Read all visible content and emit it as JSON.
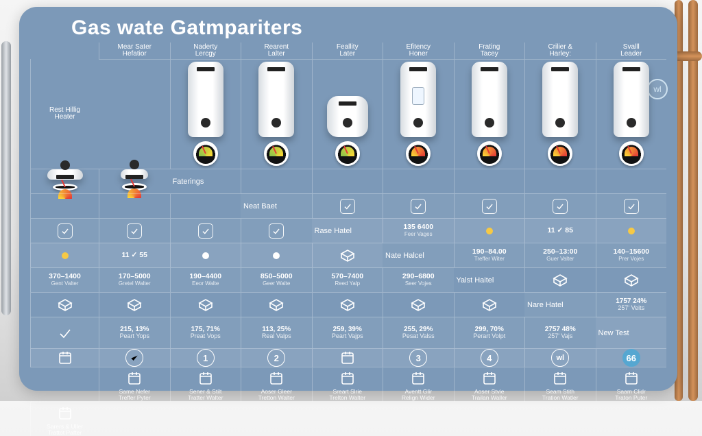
{
  "colors": {
    "card_bg": "#7c99b8",
    "grid_line": "rgba(255,255,255,.28)",
    "row_alt": "rgba(255,255,255,.05)",
    "row_high": "rgba(255,255,255,.10)",
    "accent_circle": "#56a7d1",
    "dot_yellow": "#f6c945",
    "gauge_colors": [
      "#8bc34a",
      "#fdd835",
      "#e53935"
    ]
  },
  "title": "Gas wate Gatmpariters",
  "wl_badge": "wl",
  "row_labels": {
    "r0": "Faterings",
    "r1": "Neat Baet",
    "r2": "Rase Hatel",
    "r3": "Nate Halcel",
    "r4": "Yalst Haitel",
    "r5": "Nare Hatel",
    "r6": "New Test"
  },
  "columns": [
    {
      "hdr_l1": "Mear Sater",
      "hdr_l2": "Hefatior",
      "heater": {
        "variant": "tall",
        "gauge": "g-green"
      },
      "r1": {
        "type": "check"
      },
      "r2": {
        "type": "two",
        "v": "135 6400",
        "s": "Feer Vages"
      },
      "r3": {
        "type": "two",
        "v": "190–84.00",
        "s": "Treffer Witer"
      },
      "r4": {
        "type": "box"
      },
      "r5": {
        "a": "1757 24%",
        "b": "257' Veits"
      },
      "r6": {
        "type": "iconcal"
      },
      "footer": {
        "l1": "Same Nefer",
        "l2": "Treffer Pyter"
      }
    },
    {
      "hdr_l1": "Naderty",
      "hdr_l2": "Lercgy",
      "heater": {
        "variant": "tall",
        "gauge": "g-green"
      },
      "r1": {
        "type": "check"
      },
      "r2": {
        "type": "dot",
        "color": "y"
      },
      "r3": {
        "type": "two",
        "v": "250–13:00",
        "s": "Guer Valter"
      },
      "r4": {
        "type": "box"
      },
      "r5": {
        "type": "checkonly"
      },
      "r6": {
        "type": "checkcircle"
      },
      "footer": {
        "l1": "Sener & Stilt",
        "l2": "Tratter Walter"
      }
    },
    {
      "hdr_l1": "Rearent",
      "hdr_l2": "Lalter",
      "heater": {
        "variant": "short",
        "gauge": "g-green"
      },
      "r1": {
        "type": "check"
      },
      "r2": {
        "type": "two",
        "v": "11 ✓ 85",
        "s": ""
      },
      "r3": {
        "type": "two",
        "v": "140–15600",
        "s": "Prer Vojes"
      },
      "r4": {
        "type": "box"
      },
      "r5": {
        "a": "215, 13%",
        "b": "Peart Yops"
      },
      "r6": {
        "type": "num",
        "n": "1"
      },
      "footer": {
        "l1": "Aoser Gleer",
        "l2": "Tretton Walter"
      }
    },
    {
      "hdr_l1": "Feallity",
      "hdr_l2": "Later",
      "heater": {
        "variant": "panel",
        "gauge": "g-mix"
      },
      "r1": {
        "type": "check"
      },
      "r2": {
        "type": "dot",
        "color": "y"
      },
      "r3": {
        "type": "two",
        "v": "370–1400",
        "s": "Gent Valter"
      },
      "r4": {
        "type": "box"
      },
      "r5": {
        "a": "175, 71%",
        "b": "Preat Vops"
      },
      "r6": {
        "type": "num",
        "n": "2"
      },
      "footer": {
        "l1": "Sreart Slrie",
        "l2": "Trelton Walter"
      }
    },
    {
      "hdr_l1": "Efitency",
      "hdr_l2": "Honer",
      "heater": {
        "variant": "tall",
        "gauge": "g-mix"
      },
      "r1": {
        "type": "check"
      },
      "r2": {
        "type": "dot",
        "color": "y"
      },
      "r3": {
        "type": "two",
        "v": "170–5000",
        "s": "Gretel Walter"
      },
      "r4": {
        "type": "box"
      },
      "r5": {
        "a": "113, 25%",
        "b": "Real Valps"
      },
      "r6": {
        "type": "iconcal"
      },
      "footer": {
        "l1": "Aventt Glir",
        "l2": "Relign Wider"
      }
    },
    {
      "hdr_l1": "Frating",
      "hdr_l2": "Tacey",
      "heater": {
        "variant": "tall",
        "gauge": "g-mix"
      },
      "r1": {
        "type": "check"
      },
      "r2": {
        "type": "two",
        "v": "11 ✓ 55",
        "s": ""
      },
      "r3": {
        "type": "two",
        "v": "190–4400",
        "s": "Eeor Walte"
      },
      "r4": {
        "type": "box"
      },
      "r5": {
        "a": "259, 39%",
        "b": "Peart Vajps"
      },
      "r6": {
        "type": "num",
        "n": "3"
      },
      "footer": {
        "l1": "Aoser Stvie",
        "l2": "Trailan Waller"
      }
    },
    {
      "hdr_l1": "Crilier &",
      "hdr_l2": "Harley:",
      "heater": {
        "variant": "tall",
        "gauge": "g-mix"
      },
      "r1": {
        "type": "check"
      },
      "r2": {
        "type": "dot",
        "color": "w"
      },
      "r3": {
        "type": "two",
        "v": "850–5000",
        "s": "Geer Walte"
      },
      "r4": {
        "type": "box"
      },
      "r5": {
        "a": "255, 29%",
        "b": "Pesat Valss"
      },
      "r6": {
        "type": "num",
        "n": "4"
      },
      "footer": {
        "l1": "Seam Stith",
        "l2": "Tration Watler"
      }
    },
    {
      "hdr_l1": "Svalll",
      "hdr_l2": "Leader",
      "heater": {
        "variant": "tall",
        "gauge": "g-mix"
      },
      "r1": {
        "type": "check"
      },
      "r2": {
        "type": "dot",
        "color": "w"
      },
      "r3": {
        "type": "two",
        "v": "570–7400",
        "s": "Reed Yalp"
      },
      "r4": {
        "type": "box"
      },
      "r5": {
        "a": "299, 70%",
        "b": "Perart Volpt"
      },
      "r6": {
        "type": "wl"
      },
      "footer": {
        "l1": "Saam Clidr",
        "l2": "Traton Puter"
      }
    },
    {
      "hdr_l1": "Rest Hillig",
      "hdr_l2": "Heater",
      "heater": {
        "variant": "tiny",
        "gauge": "g-mix"
      },
      "r1": {
        "type": "check"
      },
      "r2": {
        "type": "box"
      },
      "r3": {
        "type": "two",
        "v": "290–6800",
        "s": "Seer Vojes"
      },
      "r4": {
        "type": "box"
      },
      "r5": {
        "a": "2757 48%",
        "b": "257' Vajs"
      },
      "r6": {
        "type": "numfill",
        "n": "66"
      },
      "footer": {
        "l1": "Sarers & Uller",
        "l2": "Trattot Pafter"
      }
    }
  ]
}
